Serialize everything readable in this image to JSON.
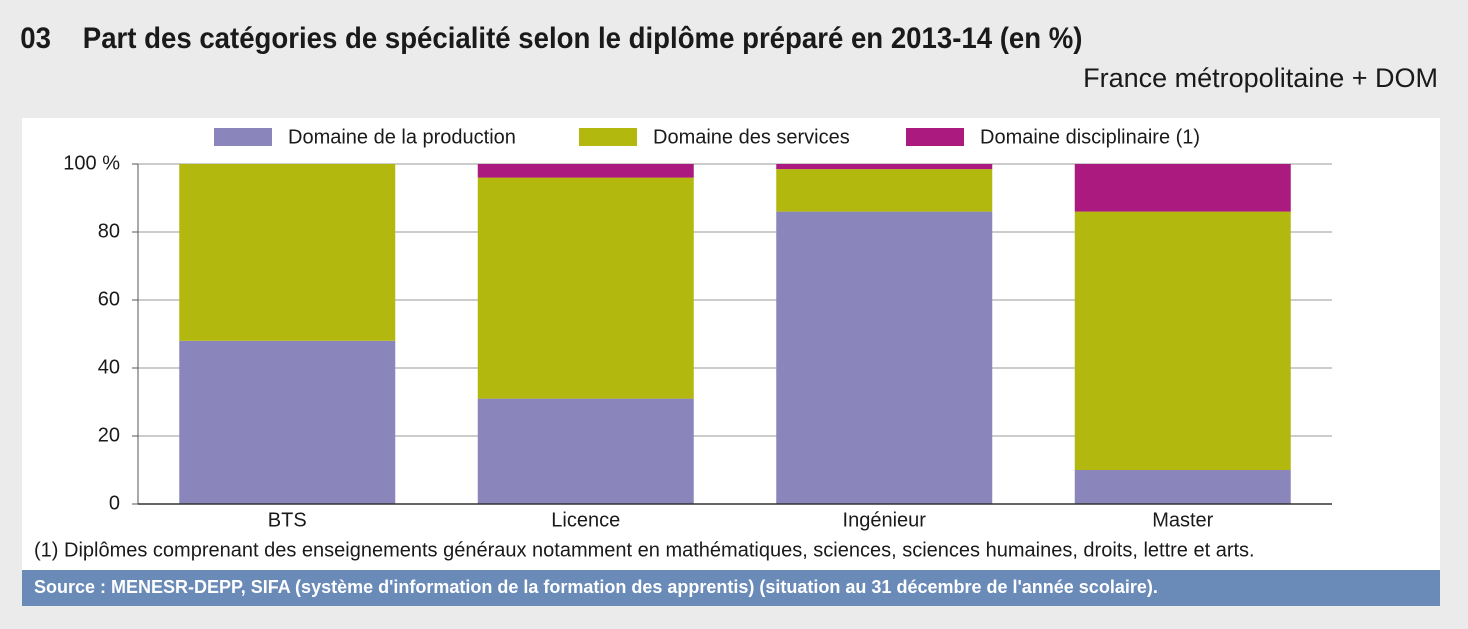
{
  "chart_data": {
    "type": "stacked_bar",
    "figure_number": "03",
    "title": "Part des catégories de spécialité selon le diplôme préparé en 2013-14 (en %)",
    "subtitle": "France métropolitaine + DOM",
    "categories": [
      "BTS",
      "Licence",
      "Ingénieur",
      "Master"
    ],
    "series": [
      {
        "name": "Domaine de la production",
        "color": "#8a85bb",
        "values": [
          48,
          31,
          86,
          10
        ]
      },
      {
        "name": "Domaine des services",
        "color": "#b3b80f",
        "values": [
          52,
          65,
          12.5,
          76
        ]
      },
      {
        "name": "Domaine disciplinaire (1)",
        "color": "#ab1a7f",
        "values": [
          0,
          4,
          1.5,
          14
        ]
      }
    ],
    "ylim": [
      0,
      100
    ],
    "yticks": [
      0,
      20,
      40,
      60,
      80,
      {
        "value": 100,
        "label": "100 %"
      }
    ],
    "grid": true,
    "legend": "top",
    "footnote": "(1) Diplômes comprenant des enseignements généraux notamment en mathématiques, sciences, sciences humaines, droits, lettre et arts.",
    "source": "Source : MENESR-DEPP, SIFA (système d'information de la formation des apprentis) (situation au 31 décembre de l'année scolaire)."
  }
}
